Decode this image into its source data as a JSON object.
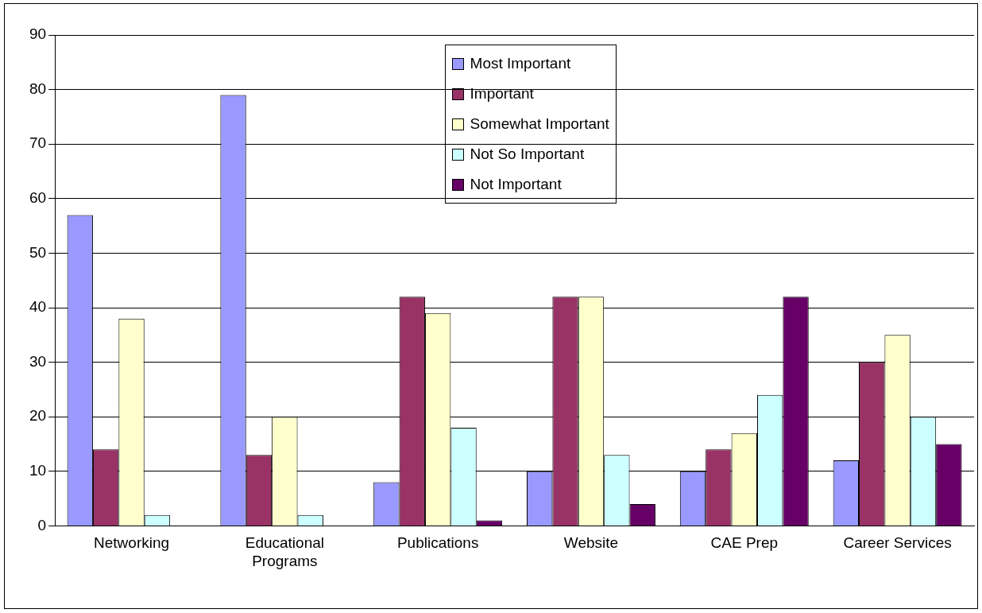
{
  "chart_data": {
    "type": "bar",
    "categories": [
      "Networking",
      "Educational Programs",
      "Publications",
      "Website",
      "CAE Prep",
      "Career Services"
    ],
    "series": [
      {
        "name": "Most Important",
        "color": "#9999ff",
        "values": [
          57,
          79,
          8,
          10,
          10,
          12
        ]
      },
      {
        "name": "Important",
        "color": "#993366",
        "values": [
          14,
          13,
          42,
          42,
          14,
          30
        ]
      },
      {
        "name": "Somewhat Important",
        "color": "#ffffcc",
        "values": [
          38,
          20,
          39,
          42,
          17,
          35
        ]
      },
      {
        "name": "Not So Important",
        "color": "#ccffff",
        "values": [
          2,
          2,
          18,
          13,
          24,
          20
        ]
      },
      {
        "name": "Not Important",
        "color": "#660066",
        "values": [
          0,
          0,
          1,
          4,
          42,
          15
        ]
      }
    ],
    "ylim": [
      0,
      90
    ],
    "yticks": [
      0,
      10,
      20,
      30,
      40,
      50,
      60,
      70,
      80,
      90
    ],
    "grid": "y",
    "legend": "top"
  }
}
